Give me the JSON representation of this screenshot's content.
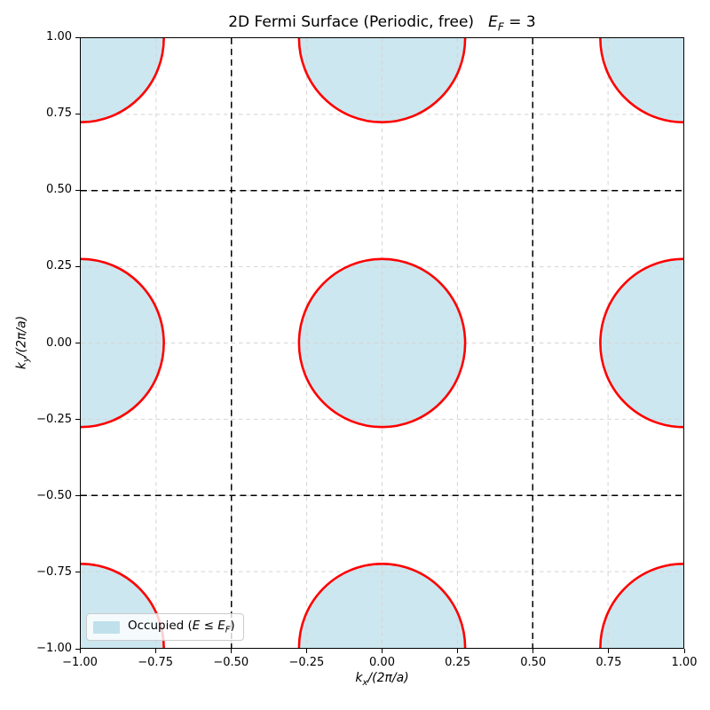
{
  "figure": {
    "title": {
      "prefix": "2D Fermi Surface (Periodic, free)",
      "ef_var": "E",
      "ef_sub": "F",
      "ef_rest": " = 3"
    },
    "xlabel": {
      "var": "k",
      "sub": "x",
      "rest": "/(2π/a)"
    },
    "ylabel": {
      "var": "k",
      "sub": "y",
      "rest": "/(2π/a)"
    },
    "legend": {
      "prefix": "Occupied (",
      "e_var": "E",
      "relation": " ≤ ",
      "ef_var": "E",
      "ef_sub": "F",
      "suffix": ")",
      "swatch_color": "rgba(173,216,230,0.75)"
    }
  },
  "chart_data": {
    "type": "area",
    "title": "2D Fermi Surface (Periodic, free)   E_F = 3",
    "xlabel": "k_x/(2π/a)",
    "ylabel": "k_y/(2π/a)",
    "xlim": [
      -1,
      1
    ],
    "ylim": [
      -1,
      1
    ],
    "grid_on": true,
    "legend_position": "lower left",
    "xticks": {
      "values": [
        -1,
        -0.75,
        -0.5,
        -0.25,
        0,
        0.25,
        0.5,
        0.75,
        1
      ],
      "labels": [
        "−1.00",
        "−0.75",
        "−0.50",
        "−0.25",
        "0.00",
        "0.25",
        "0.50",
        "0.75",
        "1.00"
      ]
    },
    "yticks": {
      "values": [
        -1,
        -0.75,
        -0.5,
        -0.25,
        0,
        0.25,
        0.5,
        0.75,
        1
      ],
      "labels": [
        "−1.00",
        "−0.75",
        "−0.50",
        "−0.25",
        "0.00",
        "0.25",
        "0.50",
        "0.75",
        "1.00"
      ]
    },
    "fermi_circles": {
      "centers": [
        [
          -1,
          -1
        ],
        [
          0,
          -1
        ],
        [
          1,
          -1
        ],
        [
          -1,
          0
        ],
        [
          0,
          0
        ],
        [
          1,
          0
        ],
        [
          -1,
          1
        ],
        [
          0,
          1
        ],
        [
          1,
          1
        ]
      ],
      "radius": 0.2757,
      "stroke": "#ff0000",
      "stroke_width": 2.6,
      "fill": "rgba(173,216,230,0.62)"
    },
    "zone_boundaries": {
      "x_values": [
        -0.5,
        0.5
      ],
      "y_values": [
        -0.5,
        0.5
      ],
      "color": "#000000",
      "dash": [
        7,
        5
      ],
      "width": 1.5
    },
    "grid": {
      "color": "#d4d4d4",
      "dash": [
        4.5,
        4
      ],
      "width": 1
    },
    "fermi_energy": 3
  }
}
